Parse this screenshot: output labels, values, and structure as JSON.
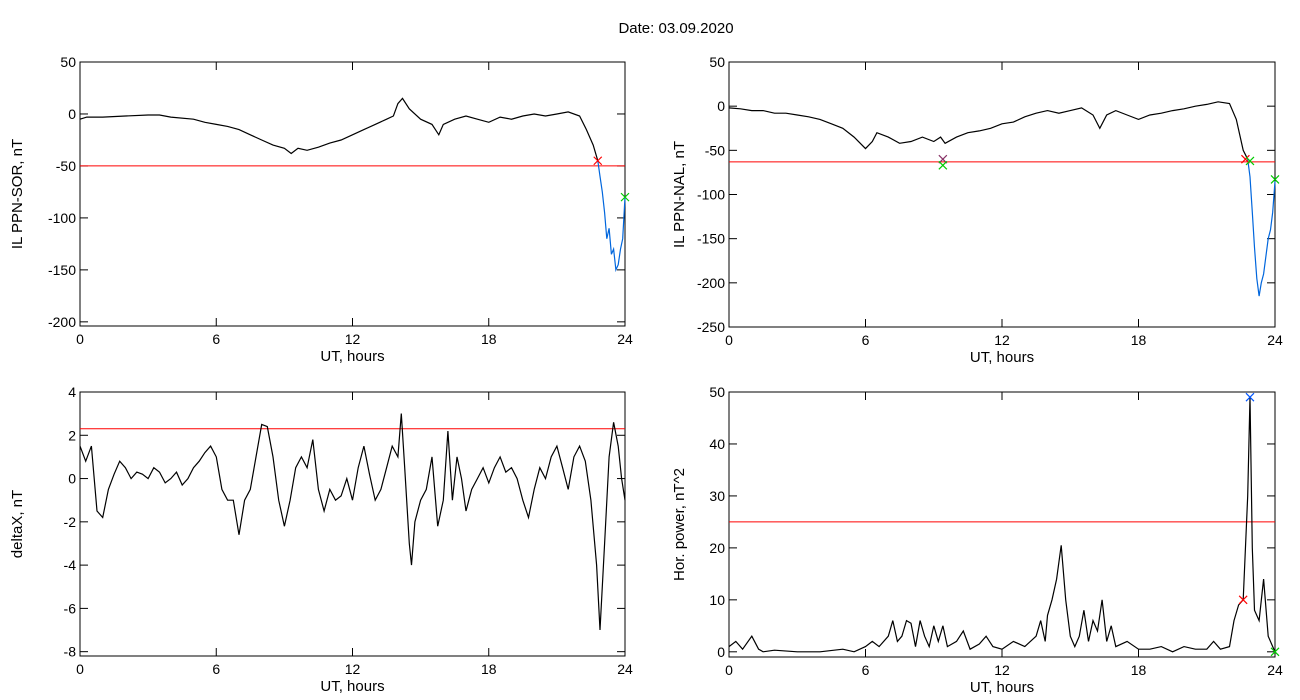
{
  "title": "Date:  03.09.2020",
  "chart_data": [
    {
      "type": "line",
      "ylabel": "IL PPN-SOR, nT",
      "xlabel": "UT, hours",
      "xlim": [
        0,
        24
      ],
      "xticks": [
        0,
        6,
        12,
        18,
        24
      ],
      "ylim": [
        -204,
        50
      ],
      "yticks": [
        50,
        0,
        -50,
        -100,
        -150,
        -200
      ],
      "hline": -50,
      "hline_color": "#ff0000",
      "series": [
        {
          "color": "#000000",
          "x": [
            0,
            0.3,
            1,
            2,
            3,
            3.5,
            4,
            5,
            5.5,
            6,
            6.5,
            7,
            7.5,
            8,
            8.5,
            9,
            9.3,
            9.6,
            10,
            10.5,
            11,
            11.5,
            12,
            12.5,
            13,
            13.5,
            13.8,
            14,
            14.2,
            14.5,
            15,
            15.5,
            15.8,
            16,
            16.5,
            17,
            17.5,
            18,
            18.5,
            19,
            19.5,
            20,
            20.5,
            21,
            21.5,
            22,
            22.3,
            22.6,
            22.8
          ],
          "values": [
            -5,
            -3,
            -3,
            -2,
            -1,
            -1,
            -3,
            -5,
            -8,
            -10,
            -12,
            -15,
            -20,
            -25,
            -30,
            -33,
            -38,
            -33,
            -35,
            -32,
            -28,
            -25,
            -20,
            -15,
            -10,
            -5,
            -2,
            10,
            15,
            5,
            -5,
            -10,
            -20,
            -10,
            -5,
            -2,
            -5,
            -8,
            -3,
            -5,
            -2,
            0,
            -2,
            0,
            2,
            -2,
            -15,
            -30,
            -45
          ]
        },
        {
          "color": "#0066dd",
          "x": [
            22.8,
            22.9,
            23.0,
            23.1,
            23.2,
            23.3,
            23.4,
            23.5,
            23.6,
            23.7,
            23.8,
            23.9,
            24
          ],
          "values": [
            -45,
            -60,
            -75,
            -95,
            -120,
            -110,
            -135,
            -130,
            -150,
            -145,
            -130,
            -120,
            -80
          ]
        }
      ],
      "markers": [
        {
          "x": 22.8,
          "y": -45,
          "color": "#ff0000"
        },
        {
          "x": 24,
          "y": -80,
          "color": "#00cc00"
        }
      ]
    },
    {
      "type": "line",
      "ylabel": "IL PPN-NAL, nT",
      "xlabel": "UT, hours",
      "xlim": [
        0,
        24
      ],
      "xticks": [
        0,
        6,
        12,
        18,
        24
      ],
      "ylim": [
        -250,
        50
      ],
      "yticks": [
        50,
        0,
        -50,
        -100,
        -150,
        -200,
        -250
      ],
      "hline": -63,
      "hline_color": "#ff0000",
      "series": [
        {
          "color": "#000000",
          "x": [
            0,
            0.5,
            1,
            1.5,
            2,
            2.5,
            3,
            3.5,
            4,
            4.5,
            5,
            5.5,
            6,
            6.3,
            6.5,
            7,
            7.5,
            8,
            8.5,
            9,
            9.3,
            9.5,
            10,
            10.5,
            11,
            11.5,
            12,
            12.5,
            13,
            13.5,
            14,
            14.5,
            15,
            15.5,
            16,
            16.3,
            16.6,
            17,
            17.5,
            18,
            18.5,
            19,
            19.5,
            20,
            20.5,
            21,
            21.5,
            22,
            22.3,
            22.6,
            22.8
          ],
          "values": [
            -2,
            -3,
            -5,
            -5,
            -8,
            -8,
            -10,
            -12,
            -15,
            -20,
            -25,
            -35,
            -48,
            -40,
            -30,
            -35,
            -42,
            -40,
            -35,
            -40,
            -35,
            -42,
            -35,
            -30,
            -28,
            -25,
            -20,
            -18,
            -12,
            -8,
            -5,
            -8,
            -5,
            -2,
            -10,
            -25,
            -10,
            -5,
            -10,
            -15,
            -10,
            -8,
            -5,
            -3,
            0,
            2,
            5,
            3,
            -15,
            -50,
            -60
          ]
        },
        {
          "color": "#0066dd",
          "x": [
            22.8,
            22.9,
            23.0,
            23.1,
            23.2,
            23.3,
            23.4,
            23.5,
            23.6,
            23.7,
            23.8,
            23.9,
            24
          ],
          "values": [
            -60,
            -80,
            -120,
            -160,
            -195,
            -215,
            -200,
            -190,
            -170,
            -150,
            -140,
            -120,
            -85
          ]
        }
      ],
      "markers": [
        {
          "x": 9.4,
          "y": -60,
          "color": "#883366"
        },
        {
          "x": 9.4,
          "y": -67,
          "color": "#00cc00"
        },
        {
          "x": 22.7,
          "y": -60,
          "color": "#ff0000"
        },
        {
          "x": 22.9,
          "y": -62,
          "color": "#00cc00"
        },
        {
          "x": 24,
          "y": -83,
          "color": "#00cc00"
        }
      ]
    },
    {
      "type": "line",
      "ylabel": "deltaX, nT",
      "xlabel": "UT, hours",
      "xlim": [
        0,
        24
      ],
      "xticks": [
        0,
        6,
        12,
        18,
        24
      ],
      "ylim": [
        -8.2,
        4
      ],
      "yticks": [
        4,
        2,
        0,
        -2,
        -4,
        -6,
        -8
      ],
      "hline": 2.3,
      "hline_color": "#ff0000",
      "series": [
        {
          "color": "#000000",
          "x": [
            0,
            0.25,
            0.5,
            0.75,
            1,
            1.25,
            1.5,
            1.75,
            2,
            2.25,
            2.5,
            2.75,
            3,
            3.25,
            3.5,
            3.75,
            4,
            4.25,
            4.5,
            4.75,
            5,
            5.25,
            5.5,
            5.75,
            6,
            6.25,
            6.5,
            6.75,
            7,
            7.25,
            7.5,
            7.75,
            8,
            8.25,
            8.5,
            8.75,
            9,
            9.25,
            9.5,
            9.75,
            10,
            10.25,
            10.5,
            10.75,
            11,
            11.25,
            11.5,
            11.75,
            12,
            12.25,
            12.5,
            12.75,
            13,
            13.25,
            13.5,
            13.75,
            14,
            14.15,
            14.3,
            14.5,
            14.6,
            14.75,
            15,
            15.25,
            15.5,
            15.75,
            16,
            16.2,
            16.4,
            16.6,
            16.8,
            17,
            17.25,
            17.5,
            17.75,
            18,
            18.25,
            18.5,
            18.75,
            19,
            19.25,
            19.5,
            19.75,
            20,
            20.25,
            20.5,
            20.75,
            21,
            21.25,
            21.5,
            21.75,
            22,
            22.25,
            22.5,
            22.75,
            22.9,
            23.1,
            23.3,
            23.5,
            23.7,
            23.85,
            24
          ],
          "values": [
            1.5,
            0.8,
            1.5,
            -1.5,
            -1.8,
            -0.5,
            0.2,
            0.8,
            0.5,
            0,
            0.3,
            0.2,
            0,
            0.5,
            0.3,
            -0.2,
            0,
            0.3,
            -0.3,
            0,
            0.5,
            0.8,
            1.2,
            1.5,
            1,
            -0.5,
            -1,
            -1,
            -2.6,
            -1,
            -0.5,
            1,
            2.5,
            2.4,
            1,
            -1,
            -2.2,
            -1,
            0.5,
            1,
            0.5,
            1.8,
            -0.5,
            -1.5,
            -0.5,
            -1,
            -0.8,
            0,
            -1,
            0.5,
            1.5,
            0.2,
            -1,
            -0.5,
            0.5,
            1.5,
            1,
            3,
            0.5,
            -3,
            -4,
            -2,
            -1,
            -0.5,
            1,
            -2.2,
            -1,
            2.2,
            -1,
            1,
            0,
            -1.5,
            -0.5,
            0,
            0.5,
            -0.2,
            0.5,
            1,
            0.3,
            0.5,
            0,
            -1,
            -1.8,
            -0.5,
            0.5,
            0,
            1,
            1.5,
            0.5,
            -0.5,
            1,
            1.5,
            0.8,
            -1,
            -4,
            -7,
            -3,
            1,
            2.6,
            1.5,
            0,
            -1
          ]
        }
      ],
      "markers": []
    },
    {
      "type": "line",
      "ylabel": "Hor. power, nT^2",
      "xlabel": "UT, hours",
      "xlim": [
        0,
        24
      ],
      "xticks": [
        0,
        6,
        12,
        18,
        24
      ],
      "ylim": [
        -1,
        50
      ],
      "yticks": [
        50,
        40,
        30,
        20,
        10,
        0
      ],
      "hline": 25,
      "hline_color": "#ff0000",
      "series": [
        {
          "color": "#000000",
          "x": [
            0,
            0.3,
            0.6,
            1,
            1.3,
            1.5,
            2,
            3,
            4,
            5,
            5.5,
            6,
            6.3,
            6.6,
            7,
            7.2,
            7.4,
            7.6,
            7.8,
            8,
            8.2,
            8.4,
            8.6,
            8.8,
            9,
            9.2,
            9.4,
            9.6,
            10,
            10.3,
            10.6,
            11,
            11.3,
            11.6,
            12,
            12.5,
            13,
            13.5,
            13.7,
            13.9,
            14,
            14.2,
            14.4,
            14.6,
            14.8,
            15,
            15.2,
            15.4,
            15.6,
            15.8,
            16,
            16.2,
            16.4,
            16.6,
            16.8,
            17,
            17.5,
            18,
            18.5,
            19,
            19.5,
            20,
            20.5,
            21,
            21.3,
            21.6,
            22,
            22.2,
            22.4,
            22.6,
            22.8,
            22.9,
            23,
            23.1,
            23.3,
            23.5,
            23.7,
            23.9,
            24
          ],
          "values": [
            1,
            2,
            0.5,
            3,
            0.5,
            0,
            0.3,
            0,
            0,
            0.5,
            0,
            1,
            2,
            1,
            3,
            6,
            2,
            3,
            6,
            5.5,
            1,
            6,
            3,
            1,
            5,
            2,
            5,
            1,
            2,
            4,
            0.5,
            1.5,
            3,
            1,
            0.5,
            2,
            1,
            3,
            6,
            2,
            7,
            10,
            14,
            20.5,
            10,
            3,
            1,
            3,
            8,
            2,
            6,
            4,
            10,
            2,
            5,
            1,
            2,
            0.5,
            0.5,
            1,
            0,
            1,
            0.5,
            0.5,
            2,
            0.5,
            1,
            6,
            9,
            10,
            30,
            49,
            20,
            8,
            6,
            14,
            3,
            1,
            0
          ]
        }
      ],
      "markers": [
        {
          "x": 22.6,
          "y": 10,
          "color": "#ff0000"
        },
        {
          "x": 22.9,
          "y": 49,
          "color": "#0055ff"
        },
        {
          "x": 24,
          "y": 0,
          "color": "#00cc00"
        }
      ]
    }
  ]
}
